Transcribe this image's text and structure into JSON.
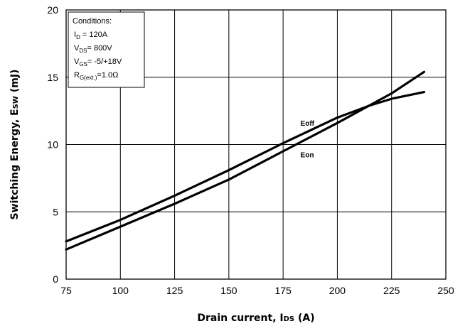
{
  "chart_data": {
    "type": "line",
    "xlabel": "Drain current, I",
    "xlabel_sub": "DS",
    "xlabel_unit": " (A)",
    "ylabel": "Switching Energy, E",
    "ylabel_sub": "SW",
    "ylabel_unit": " (mJ)",
    "xlim": [
      75,
      250
    ],
    "ylim": [
      0,
      20
    ],
    "xticks": [
      75,
      100,
      125,
      150,
      175,
      200,
      225,
      250
    ],
    "yticks": [
      0,
      5,
      10,
      15,
      20
    ],
    "grid": true,
    "series": [
      {
        "name": "Eoff",
        "x": [
          75,
          100,
          125,
          150,
          175,
          200,
          215,
          225,
          240
        ],
        "y": [
          2.8,
          4.4,
          6.2,
          8.1,
          10.1,
          12.0,
          12.9,
          13.4,
          13.9
        ]
      },
      {
        "name": "Eon",
        "x": [
          75,
          100,
          125,
          150,
          175,
          200,
          225,
          240
        ],
        "y": [
          2.2,
          3.9,
          5.6,
          7.4,
          9.5,
          11.6,
          13.8,
          15.4
        ]
      }
    ],
    "annotation": {
      "title": "Conditions:",
      "lines": [
        {
          "main": "I",
          "sub": "D",
          "rest": " = 120A"
        },
        {
          "main": "V",
          "sub": "DS",
          "rest": "= 800V"
        },
        {
          "main": "V",
          "sub": "GS",
          "rest": "= -5/+18V"
        },
        {
          "main": "R",
          "sub": "G(ext.)",
          "rest": "=1.0Ω"
        }
      ]
    }
  }
}
